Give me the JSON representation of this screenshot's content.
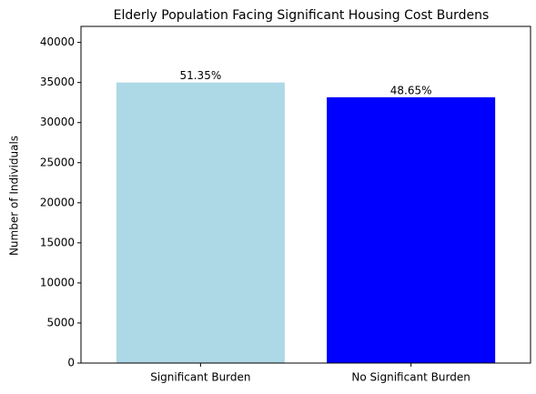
{
  "chart_data": {
    "type": "bar",
    "title": "Elderly Population Facing Significant Housing Cost Burdens",
    "ylabel": "Number of Individuals",
    "categories": [
      "Significant Burden",
      "No Significant Burden"
    ],
    "series": [
      {
        "name": null,
        "colors": [
          "#add8e6",
          "#0000ff"
        ],
        "values": [
          35000,
          33160
        ]
      }
    ],
    "annotations": [
      "51.35%",
      "48.65%"
    ],
    "ylim": [
      0,
      42000
    ],
    "yticks": [
      0,
      5000,
      10000,
      15000,
      20000,
      25000,
      30000,
      35000,
      40000
    ]
  }
}
